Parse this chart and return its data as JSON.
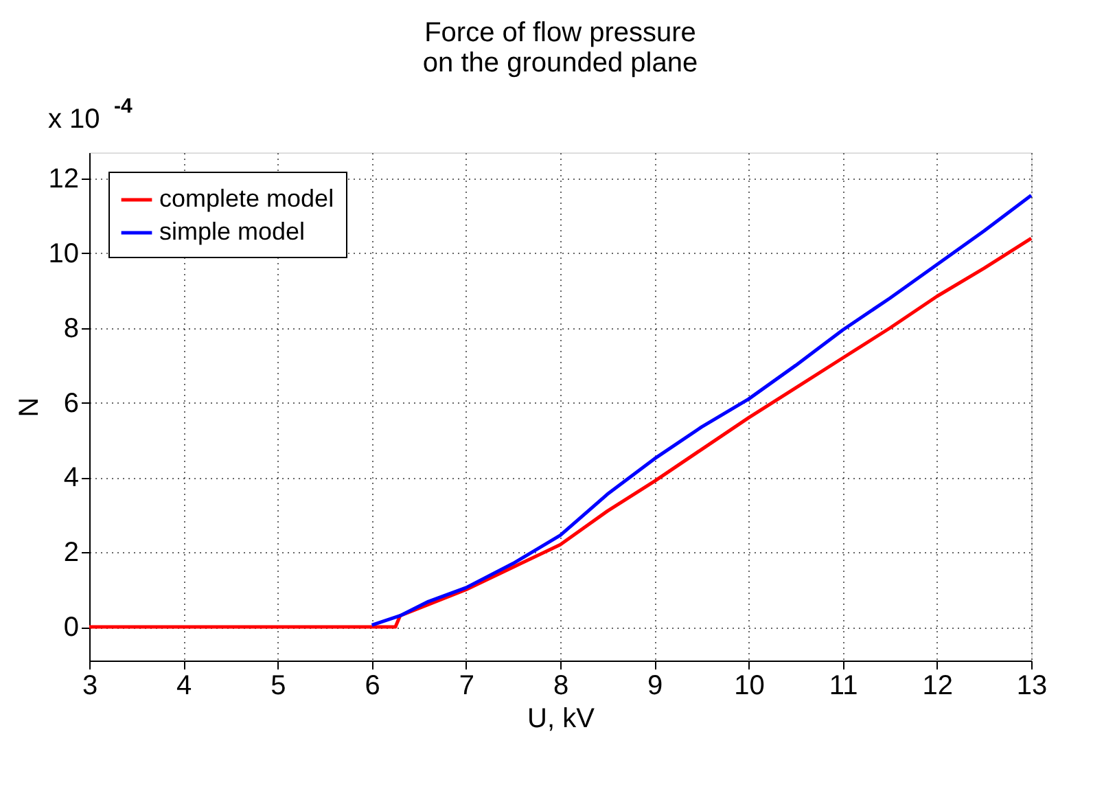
{
  "chart_data": {
    "type": "line",
    "title": "Force of flow pressure\non the grounded plane",
    "xlabel": "U, kV",
    "ylabel": "N",
    "annotations": [
      "x 10$^{-4}$"
    ],
    "series": [
      {
        "name": "complete model",
        "color": "#ff0000",
        "x": [
          3,
          4,
          5,
          6,
          6.25,
          6.3,
          6.6,
          7,
          7.5,
          8,
          8.5,
          9,
          9.5,
          10,
          10.5,
          11,
          11.5,
          12,
          12.5,
          13
        ],
        "values": [
          0,
          0,
          0,
          0,
          0,
          0.3,
          0.6,
          1.0,
          1.6,
          2.2,
          3.1,
          3.9,
          4.75,
          5.6,
          6.4,
          7.2,
          8.0,
          8.85,
          9.6,
          10.4
        ]
      },
      {
        "name": "simple model",
        "color": "#0000ff",
        "x": [
          6.0,
          6.3,
          6.6,
          7,
          7.5,
          8,
          8.5,
          9,
          9.5,
          10,
          10.5,
          11,
          11.5,
          12,
          12.5,
          13
        ],
        "values": [
          0.05,
          0.3,
          0.68,
          1.05,
          1.7,
          2.45,
          3.55,
          4.5,
          5.35,
          6.1,
          7.0,
          7.95,
          8.8,
          9.7,
          10.6,
          11.55
        ]
      }
    ],
    "xlim": [
      3,
      13
    ],
    "xticks": [
      3,
      4,
      5,
      6,
      7,
      8,
      9,
      10,
      11,
      12,
      13
    ],
    "ylim": [
      -0.9,
      12.7
    ],
    "yticks": [
      0,
      2,
      4,
      6,
      8,
      10,
      12
    ],
    "grid": true,
    "legend": "top left",
    "line_style": "solid",
    "marker": "none"
  }
}
